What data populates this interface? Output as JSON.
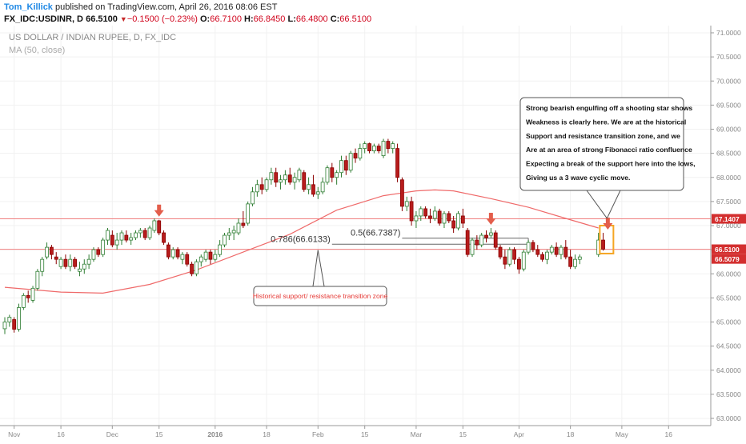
{
  "header": {
    "author": "Tom_Killick",
    "published_text": "published on TradingView.com, April 26, 2016 08:06 EST",
    "symbol": "FX_IDC:USDINR, D",
    "last": "66.5100",
    "change": "−0.1500 (−0.23%)",
    "open_label": "O:",
    "open": "66.7100",
    "high_label": "H:",
    "high": "66.8450",
    "low_label": "L:",
    "low": "66.4800",
    "close_label": "C:",
    "close": "66.5100"
  },
  "chart_data": {
    "type": "candlestick",
    "title": "US DOLLAR / INDIAN RUPEE, D, FX_IDC",
    "indicator_label": "MA (50, close)",
    "ylim": [
      62.9,
      71.1
    ],
    "y_ticks": [
      "71.0000",
      "70.5000",
      "70.0000",
      "69.5000",
      "69.0000",
      "68.5000",
      "68.0000",
      "67.5000",
      "67.0000",
      "66.5000",
      "66.0000",
      "65.5000",
      "65.0000",
      "64.5000",
      "64.0000",
      "63.5000",
      "63.0000"
    ],
    "x_ticks": [
      {
        "label": "Nov",
        "bar": -4
      },
      {
        "label": "16",
        "bar": 6
      },
      {
        "label": "Dec",
        "bar": 17
      },
      {
        "label": "15",
        "bar": 27
      },
      {
        "label": "2016",
        "bar": 39
      },
      {
        "label": "18",
        "bar": 50
      },
      {
        "label": "Feb",
        "bar": 61
      },
      {
        "label": "15",
        "bar": 71
      },
      {
        "label": "Mar",
        "bar": 82
      },
      {
        "label": "15",
        "bar": 92
      },
      {
        "label": "Apr",
        "bar": 104
      },
      {
        "label": "18",
        "bar": 115
      },
      {
        "label": "May",
        "bar": 126
      },
      {
        "label": "16",
        "bar": 136
      }
    ],
    "price_labels": [
      {
        "label": "67.1407",
        "value": 67.1407,
        "color": "#d32f2f"
      },
      {
        "label": "66.5100",
        "value": 66.51,
        "color": "#d32f2f"
      },
      {
        "label": "66.5079",
        "value": 66.5079,
        "color": "#d32f2f"
      }
    ],
    "horizontal_lines": [
      67.1407,
      66.5079
    ],
    "fib_levels": [
      {
        "label": "0.5(66.7387)",
        "value": 66.7387,
        "bar_from": 79,
        "bar_to": 106
      },
      {
        "label": "0.786(66.6133)",
        "value": 66.6133,
        "bar_from": 64,
        "bar_to": 106
      }
    ],
    "annotation_box": {
      "lines": [
        "Strong bearish engulfing off a shooting star shows",
        "Weakness is clearly here. We are at the historical",
        "Support and resistance transition zone, and we",
        "Are at an area of strong Fibonacci ratio confluence",
        "Expecting a break of the  support here into the lows,",
        "Giving us a 3 wave cyclic move."
      ]
    },
    "callout_box": {
      "text": "Historical support/ resistance transition zone",
      "color": "#e53935"
    },
    "arrows": [
      {
        "bar": 27
      },
      {
        "bar": 98
      },
      {
        "bar": 123
      }
    ],
    "highlight_bar": 123,
    "ma50": [
      [
        -6,
        65.72
      ],
      [
        6,
        65.62
      ],
      [
        15,
        65.6
      ],
      [
        25,
        65.78
      ],
      [
        35,
        66.08
      ],
      [
        45,
        66.45
      ],
      [
        55,
        66.82
      ],
      [
        65,
        67.32
      ],
      [
        75,
        67.62
      ],
      [
        82,
        67.72
      ],
      [
        86,
        67.74
      ],
      [
        90,
        67.72
      ],
      [
        98,
        67.56
      ],
      [
        106,
        67.38
      ],
      [
        114,
        67.15
      ],
      [
        121,
        66.95
      ]
    ],
    "candles": [
      [
        -6,
        64.86,
        65.1,
        64.75,
        65.0
      ],
      [
        -5,
        65.0,
        65.15,
        64.9,
        65.1
      ],
      [
        -4,
        65.05,
        65.1,
        64.78,
        64.85
      ],
      [
        -3,
        64.85,
        65.38,
        64.8,
        65.3
      ],
      [
        -2,
        65.3,
        65.6,
        65.25,
        65.55
      ],
      [
        -1,
        65.55,
        65.65,
        65.4,
        65.5
      ],
      [
        0,
        65.45,
        65.75,
        65.4,
        65.7
      ],
      [
        1,
        65.7,
        66.1,
        65.65,
        66.05
      ],
      [
        2,
        66.05,
        66.35,
        65.95,
        66.3
      ],
      [
        3,
        66.35,
        66.65,
        66.3,
        66.55
      ],
      [
        4,
        66.55,
        66.6,
        66.3,
        66.4
      ],
      [
        5,
        66.35,
        66.45,
        66.2,
        66.3
      ],
      [
        6,
        66.15,
        66.35,
        66.1,
        66.3
      ],
      [
        7,
        66.3,
        66.4,
        66.1,
        66.15
      ],
      [
        8,
        66.15,
        66.4,
        66.05,
        66.3
      ],
      [
        9,
        66.3,
        66.35,
        66.1,
        66.15
      ],
      [
        10,
        66.05,
        66.25,
        65.95,
        66.1
      ],
      [
        11,
        66.1,
        66.3,
        66.0,
        66.2
      ],
      [
        12,
        66.2,
        66.4,
        66.1,
        66.3
      ],
      [
        13,
        66.3,
        66.55,
        66.25,
        66.5
      ],
      [
        14,
        66.5,
        66.55,
        66.35,
        66.4
      ],
      [
        15,
        66.4,
        66.75,
        66.35,
        66.7
      ],
      [
        16,
        66.7,
        66.95,
        66.6,
        66.9
      ],
      [
        17,
        66.8,
        66.9,
        66.55,
        66.6
      ],
      [
        18,
        66.6,
        66.85,
        66.5,
        66.7
      ],
      [
        19,
        66.7,
        66.9,
        66.6,
        66.85
      ],
      [
        20,
        66.8,
        66.9,
        66.65,
        66.7
      ],
      [
        21,
        66.7,
        66.85,
        66.6,
        66.75
      ],
      [
        22,
        66.75,
        66.9,
        66.7,
        66.85
      ],
      [
        23,
        66.85,
        66.95,
        66.75,
        66.9
      ],
      [
        24,
        66.9,
        66.95,
        66.7,
        66.75
      ],
      [
        25,
        66.75,
        67.0,
        66.7,
        66.95
      ],
      [
        26,
        66.9,
        67.15,
        66.85,
        67.1
      ],
      [
        27,
        67.1,
        67.12,
        66.8,
        66.85
      ],
      [
        28,
        66.85,
        66.9,
        66.6,
        66.65
      ],
      [
        29,
        66.6,
        66.65,
        66.3,
        66.35
      ],
      [
        30,
        66.35,
        66.55,
        66.3,
        66.5
      ],
      [
        31,
        66.5,
        66.55,
        66.3,
        66.35
      ],
      [
        32,
        66.3,
        66.45,
        66.2,
        66.4
      ],
      [
        33,
        66.4,
        66.45,
        66.15,
        66.2
      ],
      [
        34,
        66.2,
        66.25,
        65.95,
        66.0
      ],
      [
        35,
        66.0,
        66.3,
        65.95,
        66.25
      ],
      [
        36,
        66.25,
        66.4,
        66.15,
        66.35
      ],
      [
        37,
        66.3,
        66.5,
        66.25,
        66.45
      ],
      [
        38,
        66.45,
        66.5,
        66.2,
        66.3
      ],
      [
        39,
        66.3,
        66.5,
        66.25,
        66.4
      ],
      [
        40,
        66.4,
        66.7,
        66.35,
        66.6
      ],
      [
        41,
        66.6,
        66.85,
        66.55,
        66.8
      ],
      [
        42,
        66.8,
        66.95,
        66.7,
        66.85
      ],
      [
        43,
        66.85,
        67.0,
        66.7,
        66.9
      ],
      [
        44,
        66.85,
        67.15,
        66.8,
        67.05
      ],
      [
        45,
        67.05,
        67.3,
        66.95,
        67.0
      ],
      [
        46,
        67.05,
        67.5,
        67.0,
        67.45
      ],
      [
        47,
        67.45,
        67.8,
        67.4,
        67.7
      ],
      [
        48,
        67.7,
        67.95,
        67.6,
        67.85
      ],
      [
        49,
        67.85,
        68.0,
        67.65,
        67.75
      ],
      [
        50,
        67.75,
        68.0,
        67.7,
        67.95
      ],
      [
        51,
        67.95,
        68.2,
        67.85,
        68.1
      ],
      [
        52,
        68.1,
        68.2,
        67.8,
        67.9
      ],
      [
        53,
        67.9,
        68.05,
        67.75,
        67.95
      ],
      [
        54,
        67.95,
        68.15,
        67.85,
        68.05
      ],
      [
        55,
        68.05,
        68.2,
        67.85,
        67.9
      ],
      [
        56,
        67.9,
        68.1,
        67.75,
        68.0
      ],
      [
        57,
        67.95,
        68.2,
        67.9,
        68.15
      ],
      [
        58,
        68.1,
        68.15,
        67.7,
        67.75
      ],
      [
        59,
        67.75,
        68.0,
        67.65,
        67.85
      ],
      [
        60,
        67.85,
        68.05,
        67.6,
        67.65
      ],
      [
        61,
        67.65,
        67.8,
        67.55,
        67.7
      ],
      [
        62,
        67.7,
        68.0,
        67.65,
        67.9
      ],
      [
        63,
        67.9,
        68.25,
        67.85,
        68.2
      ],
      [
        64,
        68.2,
        68.3,
        67.9,
        68.0
      ],
      [
        65,
        68.0,
        68.15,
        67.85,
        68.1
      ],
      [
        66,
        68.1,
        68.45,
        68.0,
        68.35
      ],
      [
        67,
        68.35,
        68.45,
        68.05,
        68.15
      ],
      [
        68,
        68.15,
        68.55,
        68.1,
        68.5
      ],
      [
        69,
        68.5,
        68.6,
        68.3,
        68.4
      ],
      [
        70,
        68.4,
        68.7,
        68.35,
        68.6
      ],
      [
        71,
        68.6,
        68.75,
        68.5,
        68.7
      ],
      [
        72,
        68.7,
        68.72,
        68.5,
        68.55
      ],
      [
        73,
        68.55,
        68.7,
        68.5,
        68.65
      ],
      [
        74,
        68.65,
        68.7,
        68.5,
        68.55
      ],
      [
        75,
        68.45,
        68.8,
        68.4,
        68.75
      ],
      [
        76,
        68.75,
        68.8,
        68.5,
        68.6
      ],
      [
        77,
        68.6,
        68.75,
        68.5,
        68.7
      ],
      [
        78,
        68.6,
        68.7,
        67.9,
        68.0
      ],
      [
        79,
        67.95,
        68.0,
        67.3,
        67.4
      ],
      [
        80,
        67.4,
        67.6,
        67.3,
        67.5
      ],
      [
        81,
        67.5,
        67.6,
        67.0,
        67.1
      ],
      [
        82,
        67.1,
        67.3,
        66.95,
        67.2
      ],
      [
        83,
        67.2,
        67.4,
        67.1,
        67.35
      ],
      [
        84,
        67.35,
        67.4,
        67.15,
        67.2
      ],
      [
        85,
        67.2,
        67.35,
        67.05,
        67.15
      ],
      [
        86,
        67.15,
        67.4,
        67.1,
        67.3
      ],
      [
        87,
        67.3,
        67.35,
        67.0,
        67.05
      ],
      [
        88,
        67.05,
        67.3,
        66.95,
        67.25
      ],
      [
        89,
        67.25,
        67.3,
        67.05,
        67.1
      ],
      [
        90,
        67.1,
        67.2,
        66.85,
        66.95
      ],
      [
        91,
        66.95,
        67.3,
        66.9,
        67.25
      ],
      [
        92,
        67.2,
        67.35,
        66.95,
        67.05
      ],
      [
        93,
        66.9,
        66.95,
        66.35,
        66.4
      ],
      [
        94,
        66.4,
        66.75,
        66.35,
        66.7
      ],
      [
        95,
        66.7,
        66.8,
        66.5,
        66.6
      ],
      [
        96,
        66.6,
        66.85,
        66.55,
        66.8
      ],
      [
        97,
        66.8,
        66.9,
        66.65,
        66.75
      ],
      [
        98,
        66.8,
        66.95,
        66.75,
        66.85
      ],
      [
        99,
        66.85,
        66.9,
        66.5,
        66.55
      ],
      [
        100,
        66.55,
        66.6,
        66.3,
        66.35
      ],
      [
        101,
        66.35,
        66.5,
        66.1,
        66.2
      ],
      [
        102,
        66.2,
        66.55,
        66.15,
        66.5
      ],
      [
        103,
        66.5,
        66.55,
        66.2,
        66.3
      ],
      [
        104,
        66.3,
        66.35,
        66.0,
        66.1
      ],
      [
        105,
        66.1,
        66.5,
        66.05,
        66.45
      ],
      [
        106,
        66.45,
        66.7,
        66.4,
        66.65
      ],
      [
        107,
        66.65,
        66.7,
        66.45,
        66.5
      ],
      [
        108,
        66.5,
        66.6,
        66.35,
        66.4
      ],
      [
        109,
        66.4,
        66.45,
        66.25,
        66.3
      ],
      [
        110,
        66.3,
        66.5,
        66.2,
        66.45
      ],
      [
        111,
        66.45,
        66.6,
        66.4,
        66.55
      ],
      [
        112,
        66.55,
        66.65,
        66.35,
        66.4
      ],
      [
        113,
        66.4,
        66.6,
        66.3,
        66.55
      ],
      [
        114,
        66.55,
        66.7,
        66.3,
        66.35
      ],
      [
        115,
        66.35,
        66.5,
        66.1,
        66.15
      ],
      [
        116,
        66.15,
        66.4,
        66.1,
        66.3
      ],
      [
        117,
        66.3,
        66.4,
        66.2,
        66.35
      ],
      [
        121,
        66.4,
        66.85,
        66.35,
        66.7
      ],
      [
        122,
        66.7,
        66.85,
        66.48,
        66.51
      ]
    ]
  }
}
